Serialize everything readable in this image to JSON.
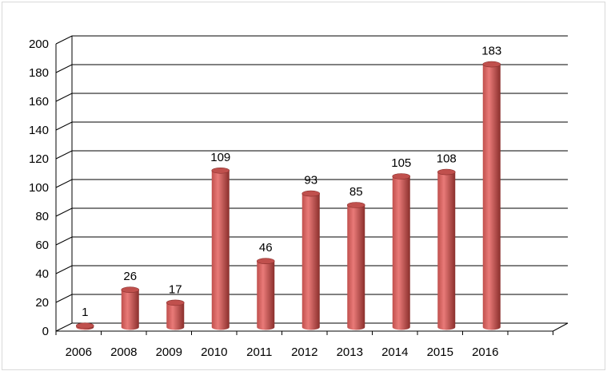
{
  "chart_data": {
    "type": "bar",
    "style": "3d-cylinder",
    "categories": [
      "2006",
      "2008",
      "2009",
      "2010",
      "2011",
      "2012",
      "2013",
      "2014",
      "2015",
      "2016"
    ],
    "values": [
      1,
      26,
      17,
      109,
      46,
      93,
      85,
      105,
      108,
      183
    ],
    "data_labels": [
      "1",
      "26",
      "17",
      "109",
      "46",
      "93",
      "85",
      "105",
      "108",
      "183"
    ],
    "y_ticks": [
      "0",
      "20",
      "40",
      "60",
      "80",
      "100",
      "120",
      "140",
      "160",
      "180",
      "200"
    ],
    "ylim": [
      0,
      200
    ],
    "title": "",
    "xlabel": "",
    "ylabel": "",
    "grid": true,
    "legend": "none",
    "colors": {
      "bar_light": "#e97a78",
      "bar_mid": "#c0504d",
      "bar_dark": "#8a2f2c",
      "grid": "#000000"
    }
  }
}
